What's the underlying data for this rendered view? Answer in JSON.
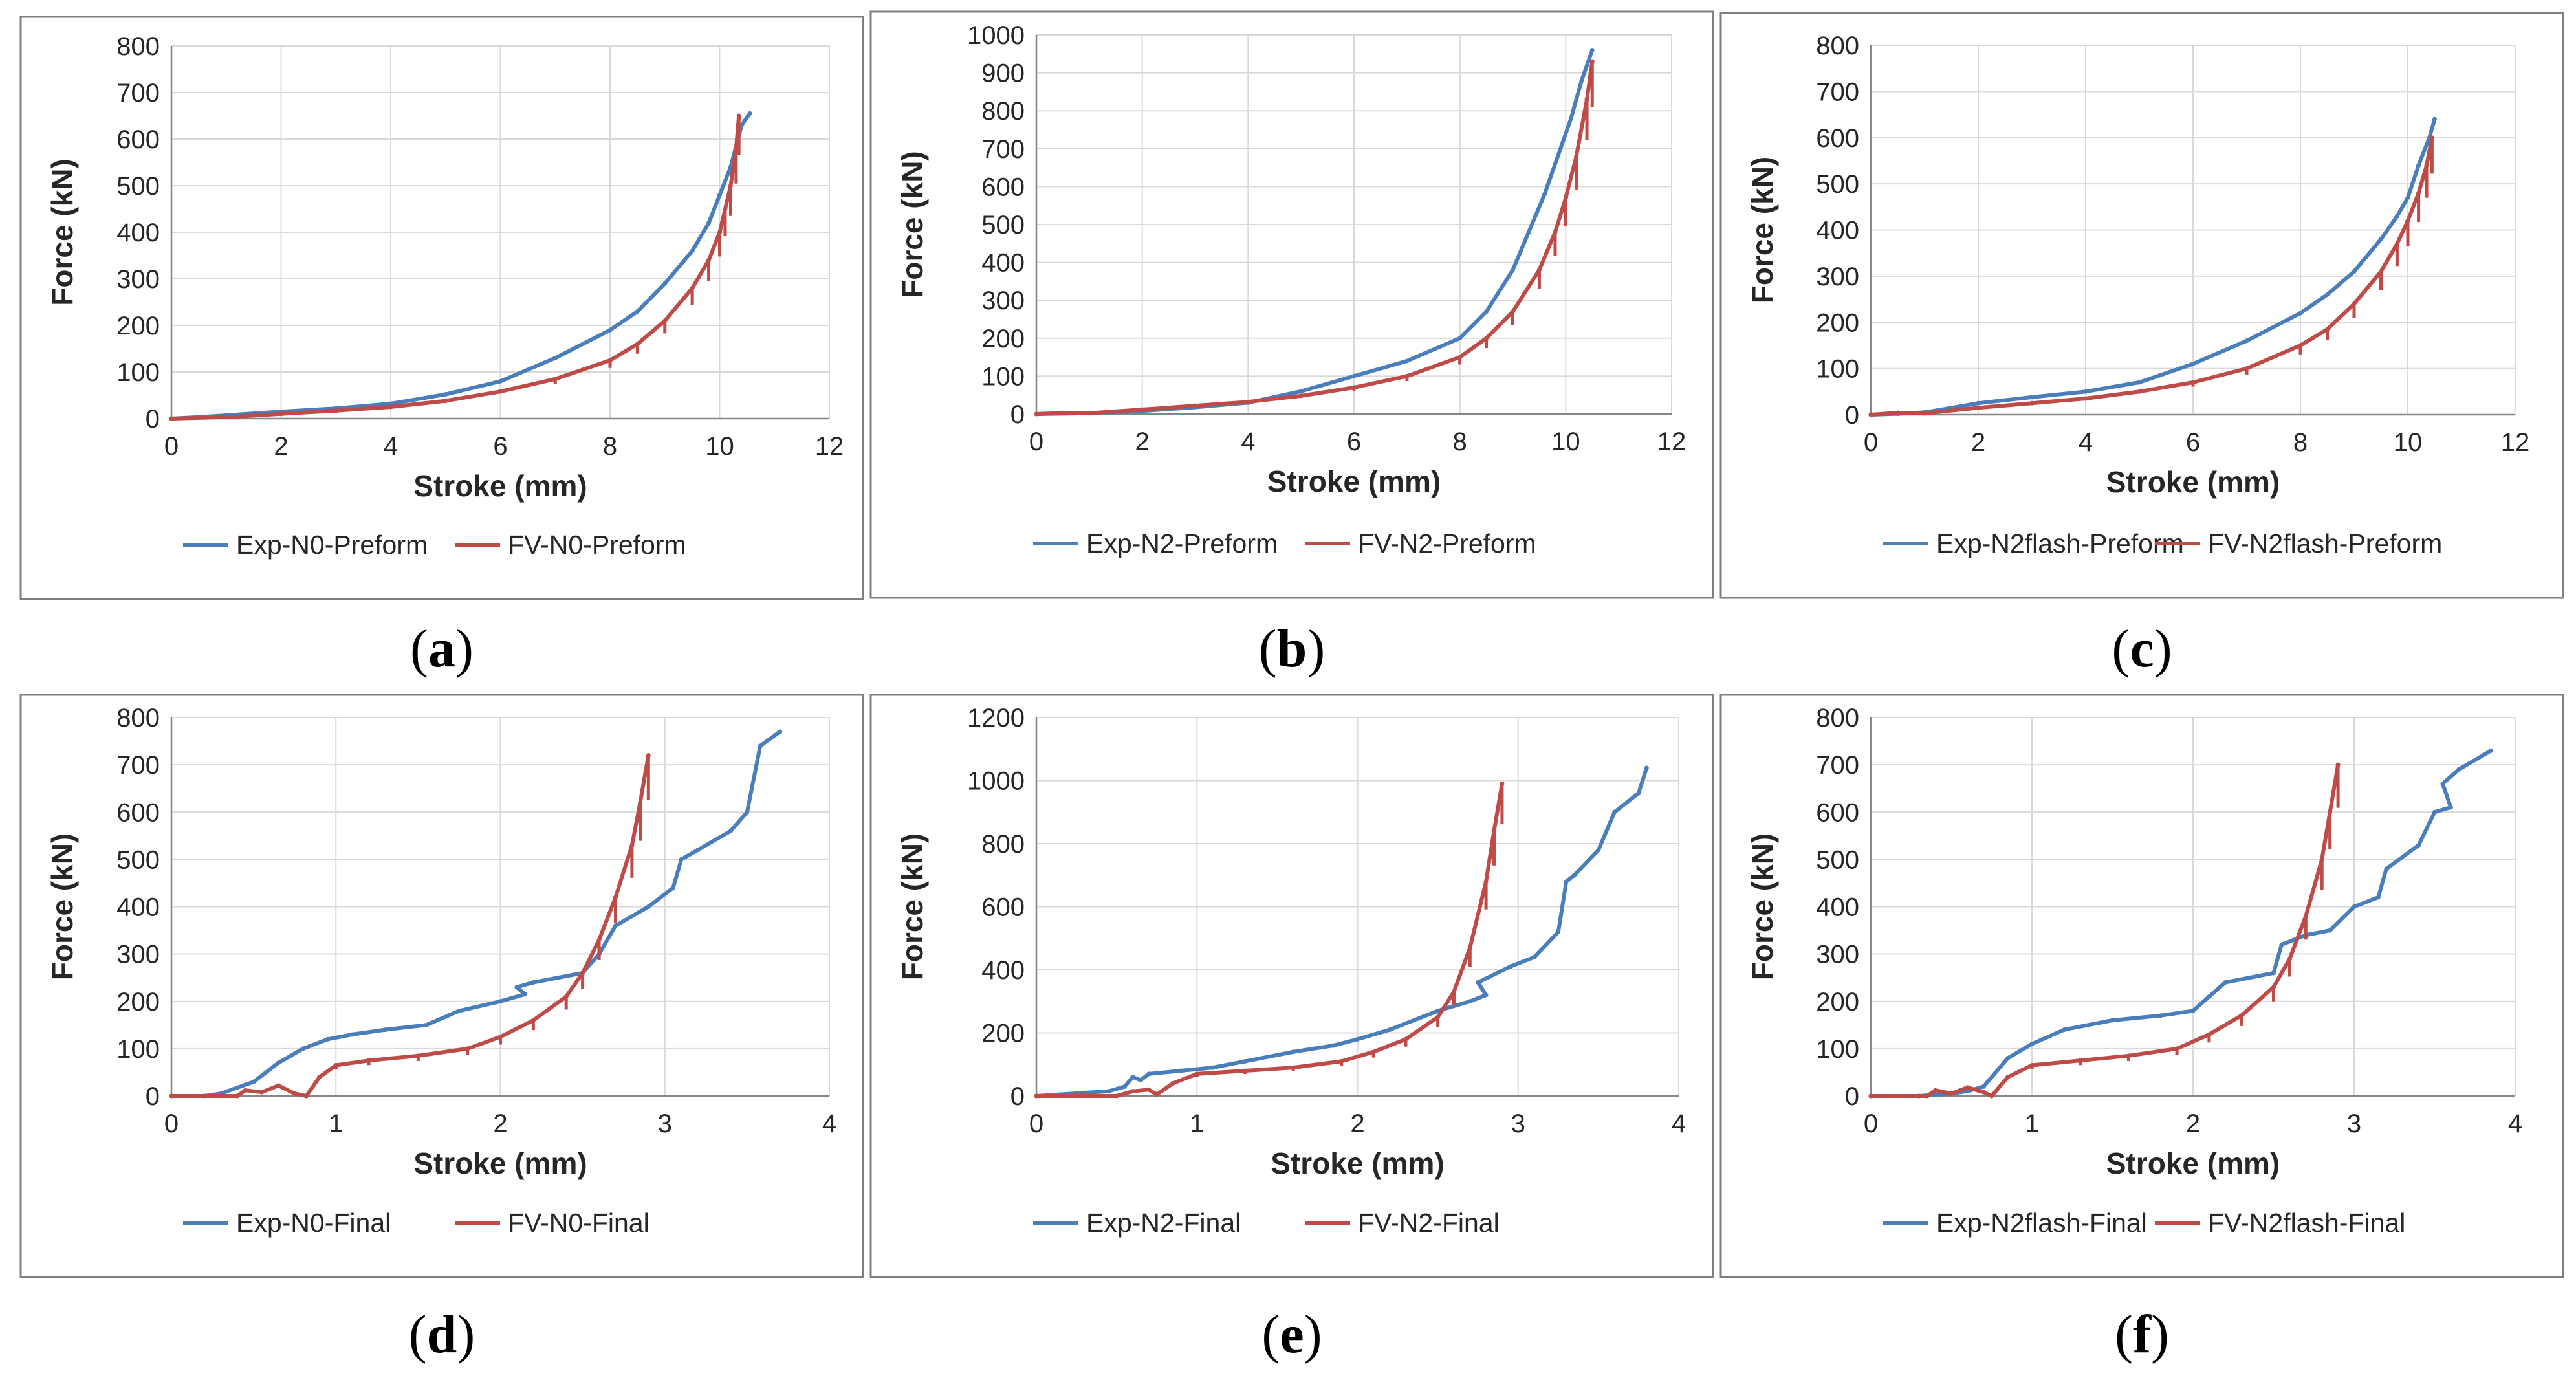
{
  "colors": {
    "exp": "#4a7ebb",
    "fv": "#be4b48",
    "grid": "#d9d9d9",
    "axis": "#868686",
    "frame": "#7f7f7f"
  },
  "chart_data": [
    {
      "id": "a",
      "type": "line",
      "panel_label": "a",
      "xlabel": "Stroke (mm)",
      "ylabel": "Force (kN)",
      "xlim": [
        0,
        12
      ],
      "xticks": [
        0,
        2,
        4,
        6,
        8,
        10,
        12
      ],
      "ylim": [
        0,
        800
      ],
      "yticks": [
        0,
        100,
        200,
        300,
        400,
        500,
        600,
        700,
        800
      ],
      "series": [
        {
          "name": "Exp-N0-Preform",
          "color": "#4a7ebb",
          "sawtooth": false,
          "x": [
            0,
            0.5,
            1,
            2,
            3,
            4,
            5,
            6,
            7,
            8,
            8.5,
            9,
            9.5,
            9.8,
            10,
            10.2,
            10.4,
            10.55
          ],
          "y": [
            0,
            3,
            7,
            15,
            22,
            32,
            52,
            80,
            130,
            190,
            230,
            290,
            360,
            420,
            480,
            540,
            630,
            655
          ]
        },
        {
          "name": "FV-N0-Preform",
          "color": "#be4b48",
          "sawtooth": true,
          "x": [
            0,
            1,
            2,
            3,
            4,
            5,
            6,
            7,
            8,
            8.5,
            9,
            9.5,
            9.8,
            10,
            10.1,
            10.2,
            10.3,
            10.35
          ],
          "y": [
            0,
            3,
            10,
            17,
            25,
            38,
            58,
            85,
            125,
            160,
            210,
            280,
            340,
            400,
            450,
            500,
            580,
            650
          ]
        }
      ]
    },
    {
      "id": "b",
      "type": "line",
      "panel_label": "b",
      "xlabel": "Stroke (mm)",
      "ylabel": "Force (kN)",
      "xlim": [
        0,
        12
      ],
      "xticks": [
        0,
        2,
        4,
        6,
        8,
        10,
        12
      ],
      "ylim": [
        0,
        1000
      ],
      "yticks": [
        0,
        100,
        200,
        300,
        400,
        500,
        600,
        700,
        800,
        900,
        1000
      ],
      "series": [
        {
          "name": "Exp-N2-Preform",
          "color": "#4a7ebb",
          "sawtooth": false,
          "x": [
            0,
            1,
            2,
            3,
            4,
            5,
            6,
            7,
            8,
            8.5,
            9,
            9.3,
            9.6,
            9.9,
            10.1,
            10.3,
            10.5
          ],
          "y": [
            0,
            2,
            8,
            18,
            30,
            60,
            100,
            140,
            200,
            270,
            380,
            480,
            580,
            700,
            780,
            880,
            960
          ]
        },
        {
          "name": "FV-N2-Preform",
          "color": "#be4b48",
          "sawtooth": true,
          "x": [
            0,
            0.5,
            1,
            2,
            3,
            4,
            5,
            6,
            7,
            8,
            8.5,
            9,
            9.5,
            9.8,
            10,
            10.2,
            10.4,
            10.5
          ],
          "y": [
            0,
            3,
            2,
            12,
            22,
            32,
            48,
            70,
            100,
            150,
            200,
            270,
            380,
            480,
            570,
            680,
            830,
            930
          ]
        }
      ]
    },
    {
      "id": "c",
      "type": "line",
      "panel_label": "c",
      "xlabel": "Stroke (mm)",
      "ylabel": "Force (kN)",
      "xlim": [
        0,
        12
      ],
      "xticks": [
        0,
        2,
        4,
        6,
        8,
        10,
        12
      ],
      "ylim": [
        0,
        800
      ],
      "yticks": [
        0,
        100,
        200,
        300,
        400,
        500,
        600,
        700,
        800
      ],
      "series": [
        {
          "name": "Exp-N2flash-Preform",
          "color": "#4a7ebb",
          "sawtooth": false,
          "x": [
            0,
            0.5,
            1,
            2,
            3,
            4,
            5,
            6,
            7,
            8,
            8.5,
            9,
            9.5,
            9.8,
            10,
            10.2,
            10.4,
            10.5
          ],
          "y": [
            0,
            2,
            5,
            25,
            38,
            50,
            70,
            110,
            160,
            220,
            260,
            310,
            380,
            430,
            470,
            540,
            600,
            640
          ]
        },
        {
          "name": "FV-N2flash-Preform",
          "color": "#be4b48",
          "sawtooth": true,
          "x": [
            0,
            0.5,
            1,
            2,
            3,
            4,
            5,
            6,
            7,
            8,
            8.5,
            9,
            9.5,
            9.8,
            10,
            10.2,
            10.35,
            10.45
          ],
          "y": [
            0,
            4,
            3,
            15,
            25,
            35,
            50,
            70,
            100,
            150,
            185,
            240,
            310,
            370,
            420,
            480,
            540,
            600
          ]
        }
      ]
    },
    {
      "id": "d",
      "type": "line",
      "panel_label": "d",
      "xlabel": "Stroke (mm)",
      "ylabel": "Force (kN)",
      "xlim": [
        0,
        4
      ],
      "xticks": [
        0,
        1,
        2,
        3,
        4
      ],
      "ylim": [
        0,
        800
      ],
      "yticks": [
        0,
        100,
        200,
        300,
        400,
        500,
        600,
        700,
        800
      ],
      "series": [
        {
          "name": "Exp-N0-Final",
          "color": "#4a7ebb",
          "sawtooth": false,
          "x": [
            0,
            0.2,
            0.3,
            0.5,
            0.65,
            0.8,
            0.95,
            1.1,
            1.3,
            1.55,
            1.75,
            2.0,
            2.15,
            2.1,
            2.2,
            2.5,
            2.6,
            2.7,
            2.9,
            3.05,
            3.1,
            3.2,
            3.4,
            3.5,
            3.58,
            3.7
          ],
          "y": [
            0,
            0,
            5,
            30,
            70,
            100,
            120,
            130,
            140,
            150,
            180,
            200,
            215,
            230,
            240,
            260,
            300,
            360,
            400,
            440,
            500,
            520,
            560,
            600,
            740,
            770
          ]
        },
        {
          "name": "FV-N0-Final",
          "color": "#be4b48",
          "sawtooth": true,
          "x": [
            0,
            0.4,
            0.45,
            0.55,
            0.65,
            0.75,
            0.82,
            0.9,
            1.0,
            1.2,
            1.5,
            1.8,
            2.0,
            2.2,
            2.4,
            2.5,
            2.6,
            2.7,
            2.8,
            2.85,
            2.9
          ],
          "y": [
            0,
            0,
            12,
            8,
            22,
            5,
            0,
            40,
            65,
            75,
            85,
            100,
            125,
            160,
            210,
            260,
            330,
            420,
            530,
            620,
            720
          ]
        }
      ]
    },
    {
      "id": "e",
      "type": "line",
      "panel_label": "e",
      "xlabel": "Stroke (mm)",
      "ylabel": "Force (kN)",
      "xlim": [
        0,
        4
      ],
      "xticks": [
        0,
        1,
        2,
        3,
        4
      ],
      "ylim": [
        0,
        1200
      ],
      "yticks": [
        0,
        200,
        400,
        600,
        800,
        1000,
        1200
      ],
      "series": [
        {
          "name": "Exp-N2-Final",
          "color": "#4a7ebb",
          "sawtooth": false,
          "x": [
            0,
            0.15,
            0.3,
            0.45,
            0.55,
            0.6,
            0.65,
            0.7,
            0.9,
            1.1,
            1.3,
            1.6,
            1.85,
            2.0,
            2.2,
            2.5,
            2.7,
            2.8,
            2.75,
            2.95,
            3.1,
            3.25,
            3.3,
            3.35,
            3.5,
            3.6,
            3.75,
            3.8
          ],
          "y": [
            0,
            5,
            10,
            15,
            30,
            60,
            50,
            70,
            80,
            90,
            110,
            140,
            160,
            180,
            210,
            270,
            300,
            320,
            360,
            410,
            440,
            520,
            680,
            700,
            780,
            900,
            960,
            1040
          ]
        },
        {
          "name": "FV-N2-Final",
          "color": "#be4b48",
          "sawtooth": true,
          "x": [
            0,
            0.5,
            0.6,
            0.7,
            0.75,
            0.85,
            1.0,
            1.3,
            1.6,
            1.9,
            2.1,
            2.3,
            2.5,
            2.6,
            2.7,
            2.8,
            2.85,
            2.9
          ],
          "y": [
            0,
            0,
            15,
            20,
            5,
            40,
            70,
            80,
            90,
            110,
            140,
            180,
            250,
            330,
            470,
            680,
            840,
            990
          ]
        }
      ]
    },
    {
      "id": "f",
      "type": "line",
      "panel_label": "f",
      "xlabel": "Stroke (mm)",
      "ylabel": "Force (kN)",
      "xlim": [
        0,
        4
      ],
      "xticks": [
        0,
        1,
        2,
        3,
        4
      ],
      "ylim": [
        0,
        800
      ],
      "yticks": [
        0,
        100,
        200,
        300,
        400,
        500,
        600,
        700,
        800
      ],
      "series": [
        {
          "name": "Exp-N2flash-Final",
          "color": "#4a7ebb",
          "sawtooth": false,
          "x": [
            0,
            0.3,
            0.5,
            0.6,
            0.7,
            0.85,
            1.0,
            1.2,
            1.5,
            1.8,
            2.0,
            2.1,
            2.2,
            2.5,
            2.55,
            2.7,
            2.85,
            3.0,
            3.15,
            3.2,
            3.4,
            3.5,
            3.6,
            3.55,
            3.65,
            3.85
          ],
          "y": [
            0,
            0,
            5,
            10,
            20,
            80,
            110,
            140,
            160,
            170,
            180,
            210,
            240,
            260,
            320,
            340,
            350,
            400,
            420,
            480,
            530,
            600,
            610,
            660,
            690,
            730
          ]
        },
        {
          "name": "FV-N2flash-Final",
          "color": "#be4b48",
          "sawtooth": true,
          "x": [
            0,
            0.35,
            0.4,
            0.5,
            0.6,
            0.7,
            0.75,
            0.85,
            1.0,
            1.3,
            1.6,
            1.9,
            2.1,
            2.3,
            2.5,
            2.6,
            2.7,
            2.8,
            2.85,
            2.9
          ],
          "y": [
            0,
            0,
            12,
            5,
            18,
            8,
            0,
            40,
            65,
            75,
            85,
            100,
            130,
            170,
            230,
            290,
            380,
            500,
            600,
            700
          ]
        }
      ]
    }
  ]
}
